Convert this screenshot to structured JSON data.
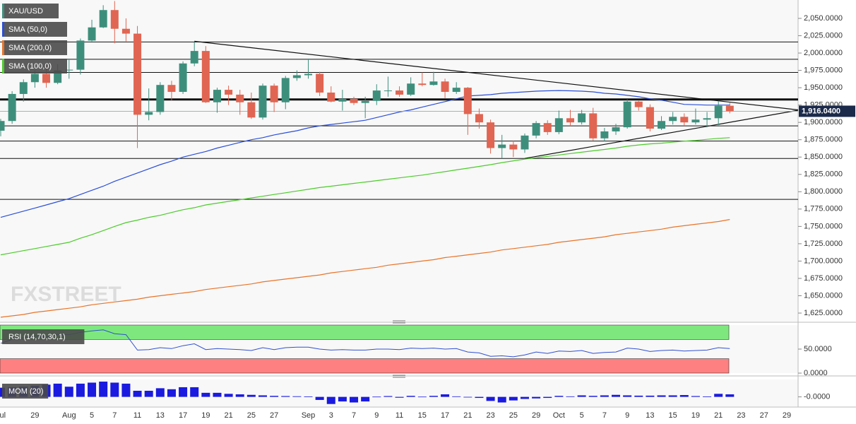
{
  "chart_data": {
    "type": "candlestick",
    "title": "XAU/USD",
    "watermark": "FXSTREET",
    "categories": [
      "Jul",
      null,
      null,
      "29",
      null,
      null,
      "Aug",
      null,
      "5",
      null,
      "7",
      null,
      "11",
      null,
      "13",
      null,
      "17",
      null,
      "19",
      null,
      "21",
      null,
      "25",
      null,
      "27",
      null,
      null,
      "Sep",
      null,
      "3",
      null,
      "7",
      null,
      "9",
      null,
      "11",
      null,
      "15",
      null,
      "17",
      null,
      "21",
      null,
      "23",
      null,
      "25",
      null,
      "29",
      null,
      "Oct",
      null,
      "5",
      null,
      "7",
      null,
      "9",
      null,
      "13",
      null,
      "15",
      null,
      "19",
      null,
      "21",
      null,
      "23",
      null,
      "27",
      null,
      "29"
    ],
    "open": [
      1888,
      1902,
      1941,
      1958,
      1970,
      1957,
      1975,
      1976,
      2018,
      2037,
      2062,
      2035,
      2028,
      1911,
      1915,
      1954,
      1944,
      1985,
      2003,
      1929,
      1947,
      1940,
      1929,
      1907,
      1953,
      1929,
      1964,
      1968,
      1970,
      1943,
      1930,
      1934,
      1928,
      1931,
      1946,
      1946,
      1940,
      1956,
      1954,
      1959,
      1944,
      1950,
      1912,
      1900,
      1863,
      1868,
      1861,
      1881,
      1899,
      1886,
      1906,
      1900,
      1913,
      1877,
      1887,
      1893,
      1930,
      1922,
      1891,
      1902,
      1908,
      1900,
      1904,
      1906,
      1924,
      null,
      null,
      null,
      null,
      null
    ],
    "high": [
      1905,
      1945,
      1962,
      1975,
      1982,
      1984,
      1992,
      2021,
      2048,
      2069,
      2075,
      2050,
      2039,
      1949,
      1958,
      1960,
      1988,
      2016,
      2010,
      1950,
      1953,
      1947,
      1943,
      1956,
      1956,
      1967,
      1975,
      1992,
      1973,
      1952,
      1947,
      1937,
      1937,
      1955,
      1966,
      1952,
      1965,
      1972,
      1973,
      1963,
      1958,
      1951,
      1920,
      1904,
      1882,
      1874,
      1884,
      1902,
      1903,
      1917,
      1918,
      1918,
      1921,
      1892,
      1898,
      1933,
      1931,
      1926,
      1909,
      1915,
      1913,
      1920,
      1915,
      1931,
      1928,
      null,
      null,
      null,
      null,
      null
    ],
    "low": [
      1880,
      1898,
      1930,
      1950,
      1950,
      1955,
      1963,
      1969,
      2017,
      2036,
      2014,
      2017,
      1863,
      1903,
      1911,
      1932,
      1941,
      1981,
      1928,
      1914,
      1925,
      1911,
      1905,
      1904,
      1915,
      1919,
      1960,
      1963,
      1938,
      1929,
      1917,
      1925,
      1906,
      1925,
      1937,
      1937,
      1938,
      1952,
      1953,
      1935,
      1941,
      1882,
      1891,
      1855,
      1848,
      1850,
      1856,
      1877,
      1882,
      1883,
      1895,
      1897,
      1874,
      1873,
      1882,
      1891,
      1917,
      1887,
      1889,
      1897,
      1895,
      1897,
      1893,
      1896,
      1913,
      null,
      null,
      null,
      null,
      null
    ],
    "close": [
      1902,
      1941,
      1958,
      1970,
      1957,
      1975,
      1976,
      2018,
      2037,
      2062,
      2035,
      2028,
      1911,
      1915,
      1954,
      1944,
      1985,
      2003,
      1929,
      1947,
      1940,
      1929,
      1907,
      1953,
      1929,
      1964,
      1968,
      1970,
      1943,
      1930,
      1934,
      1928,
      1931,
      1946,
      1946,
      1940,
      1956,
      1954,
      1959,
      1944,
      1950,
      1912,
      1900,
      1863,
      1868,
      1861,
      1881,
      1899,
      1886,
      1906,
      1900,
      1913,
      1877,
      1887,
      1893,
      1930,
      1922,
      1891,
      1902,
      1908,
      1900,
      1904,
      1906,
      1924,
      1916.04,
      null,
      null,
      null,
      null,
      null
    ],
    "up_color": "#3d8f7c",
    "down_color": "#e06552",
    "ylim": [
      1612.8,
      2076.5
    ],
    "yticks": [
      {
        "value": 2050,
        "label": "2,050.0000"
      },
      {
        "value": 2025,
        "label": "2,025.0000"
      },
      {
        "value": 2000,
        "label": "2,000.0000"
      },
      {
        "value": 1975,
        "label": "1,975.0000"
      },
      {
        "value": 1950,
        "label": "1,950.0000"
      },
      {
        "value": 1925,
        "label": "1,925.0000"
      },
      {
        "value": 1900,
        "label": "1,900.0000"
      },
      {
        "value": 1875,
        "label": "1,875.0000"
      },
      {
        "value": 1850,
        "label": "1,850.0000"
      },
      {
        "value": 1825,
        "label": "1,825.0000"
      },
      {
        "value": 1800,
        "label": "1,800.0000"
      },
      {
        "value": 1775,
        "label": "1,775.0000"
      },
      {
        "value": 1750,
        "label": "1,750.0000"
      },
      {
        "value": 1725,
        "label": "1,725.0000"
      },
      {
        "value": 1700,
        "label": "1,700.0000"
      },
      {
        "value": 1675,
        "label": "1,675.0000"
      },
      {
        "value": 1650,
        "label": "1,650.0000"
      },
      {
        "value": 1625,
        "label": "1,625.0000"
      }
    ],
    "last_price": {
      "value": 1916.04,
      "label": "1,916.0400"
    },
    "overlays": [
      {
        "name": "SMA (50,0)",
        "color": "#2b4fd8",
        "values": [
          1763,
          1767.5,
          1772,
          1776.5,
          1781,
          1785.5,
          1790,
          1796,
          1802,
          1808,
          1815,
          1821,
          1827,
          1833,
          1839,
          1844,
          1850,
          1854,
          1858,
          1863,
          1867,
          1871,
          1875,
          1878,
          1882,
          1885,
          1888,
          1892,
          1895,
          1897,
          1899,
          1901,
          1903,
          1907,
          1911,
          1915,
          1918,
          1922,
          1926,
          1930,
          1934,
          1938,
          1939,
          1940,
          1942,
          1943,
          1944,
          1945,
          1945.5,
          1946,
          1945.5,
          1945,
          1944,
          1942,
          1941,
          1939,
          1937,
          1934,
          1932,
          1929,
          1926,
          1925.5,
          1925,
          1925,
          1925,
          null,
          null,
          null,
          null,
          null
        ]
      },
      {
        "name": "SMA (200,0)",
        "color": "#e8742a",
        "values": [
          1619,
          1621,
          1623,
          1626,
          1628,
          1630,
          1632,
          1634,
          1637,
          1639,
          1641,
          1643,
          1645,
          1648,
          1650,
          1652,
          1654,
          1656,
          1659,
          1661,
          1663,
          1665,
          1667,
          1670,
          1672,
          1674,
          1676,
          1678,
          1680,
          1683,
          1685,
          1687,
          1689,
          1691,
          1694,
          1696,
          1698,
          1700,
          1702,
          1705,
          1707,
          1709,
          1711,
          1713,
          1716,
          1718,
          1720,
          1722,
          1724,
          1727,
          1729,
          1731,
          1733,
          1735,
          1738,
          1740,
          1742,
          1744,
          1746,
          1749,
          1751,
          1753,
          1755,
          1757,
          1760,
          null,
          null,
          null,
          null,
          null
        ]
      },
      {
        "name": "SMA (100,0)",
        "color": "#4ccc2a",
        "values": [
          1709,
          1712,
          1715,
          1718,
          1721,
          1724,
          1727,
          1733,
          1738,
          1744,
          1750,
          1755.5,
          1759,
          1763,
          1766,
          1770,
          1774,
          1777,
          1781,
          1783.5,
          1786,
          1788.5,
          1791,
          1793.5,
          1796,
          1798.5,
          1801,
          1803.5,
          1806,
          1808,
          1810,
          1812,
          1814,
          1816,
          1818,
          1820,
          1822,
          1824,
          1826.5,
          1829,
          1831.5,
          1834,
          1836.5,
          1839,
          1842,
          1844.5,
          1847,
          1849,
          1851,
          1853,
          1855,
          1857,
          1859,
          1861,
          1863,
          1865.5,
          1867.5,
          1869,
          1870,
          1871.5,
          1873,
          1874,
          1875.5,
          1877,
          1878,
          null,
          null,
          null,
          null,
          null
        ]
      }
    ],
    "levels": [
      2016,
      1991,
      1972,
      1933,
      1895,
      1873,
      1848,
      1789
    ],
    "trend_lines": [
      {
        "x": [
          17,
          70
        ],
        "values": [
          2017,
          1918
        ]
      },
      {
        "x": [
          46,
          70
        ],
        "values": [
          1848,
          1917.5
        ]
      }
    ],
    "panels": [
      {
        "type": "line",
        "name": "RSI (14,70,30,1)",
        "color": "#3050d0",
        "values": [
          62,
          70,
          74,
          78,
          75,
          80,
          80,
          85,
          88,
          90,
          82,
          80,
          48,
          49,
          53,
          51,
          57,
          61,
          49,
          51,
          50,
          49,
          47,
          53,
          49,
          53,
          54,
          54,
          50,
          48,
          49,
          48,
          48,
          50,
          50,
          49,
          52,
          51,
          52,
          50,
          51,
          44,
          42,
          35,
          36,
          34,
          38,
          44,
          41,
          46,
          45,
          47,
          41,
          43,
          44,
          52,
          50,
          45,
          47,
          48,
          46,
          47,
          48,
          53,
          51,
          null,
          null,
          null,
          null,
          null
        ],
        "ylim": [
          0,
          100
        ],
        "yticks": [
          {
            "value": 50,
            "label": "50.0000"
          },
          {
            "value": 0,
            "label": "0.0000"
          }
        ],
        "bands": [
          {
            "from": 70,
            "to": 100,
            "color": "#7ee87e"
          },
          {
            "from": 0,
            "to": 30,
            "color": "#ff8080"
          }
        ]
      },
      {
        "type": "bar",
        "name": "MOM (20)",
        "color": "#1a1ae0",
        "values": [
          90,
          95,
          100,
          110,
          120,
          130,
          100,
          130,
          140,
          150,
          140,
          130,
          60,
          60,
          85,
          75,
          95,
          95,
          40,
          40,
          30,
          25,
          20,
          15,
          10,
          8,
          6,
          4,
          -30,
          -70,
          -45,
          -55,
          -45,
          2,
          8,
          -8,
          10,
          2,
          10,
          25,
          5,
          -5,
          -10,
          -40,
          -55,
          -35,
          -20,
          -15,
          -10,
          10,
          5,
          15,
          10,
          15,
          20,
          15,
          12,
          12,
          15,
          15,
          18,
          8,
          3,
          30,
          25,
          null,
          null,
          null,
          null,
          null
        ],
        "ylim": [
          -93,
          171
        ],
        "yticks": [
          {
            "value": 0,
            "label": "-0.0000"
          }
        ]
      }
    ]
  }
}
